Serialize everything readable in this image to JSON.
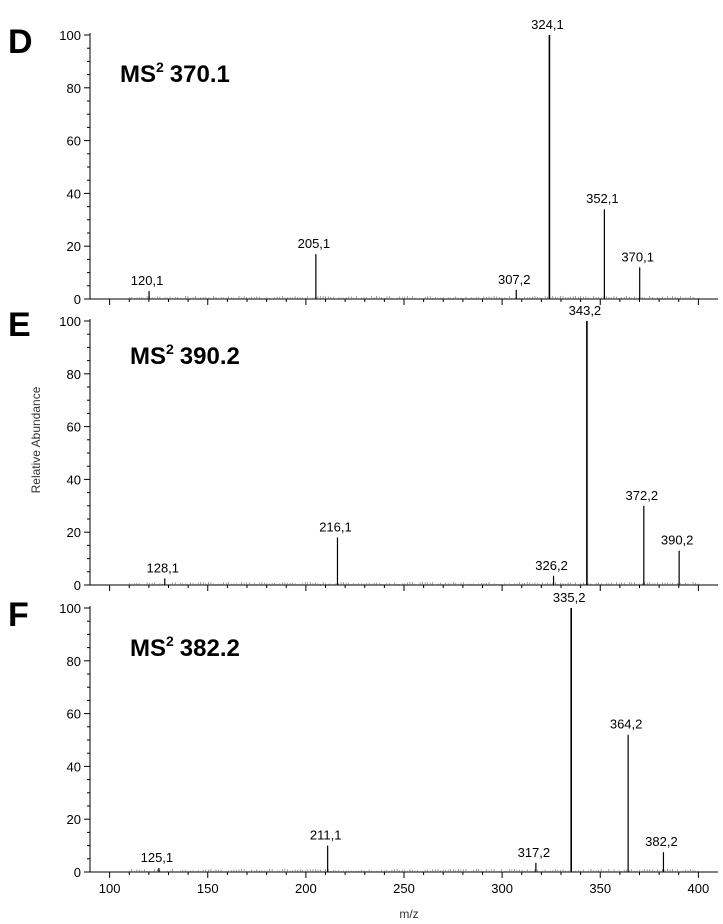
{
  "chart_data": [
    {
      "type": "bar",
      "panel": "D",
      "title_main": "MS",
      "title_sup": "2",
      "title_value": "370.1",
      "xlim": [
        90,
        410
      ],
      "ylim": [
        0,
        100
      ],
      "yticks": [
        "0",
        "20",
        "40",
        "60",
        "80",
        "100"
      ],
      "peaks": [
        {
          "x": 120.1,
          "y": 3,
          "label": "120,1"
        },
        {
          "x": 205.1,
          "y": 17,
          "label": "205,1"
        },
        {
          "x": 307.2,
          "y": 3.5,
          "label": "307,2"
        },
        {
          "x": 324.1,
          "y": 100,
          "label": "324,1"
        },
        {
          "x": 352.1,
          "y": 34,
          "label": "352,1"
        },
        {
          "x": 370.1,
          "y": 12,
          "label": "370,1"
        }
      ]
    },
    {
      "type": "bar",
      "panel": "E",
      "title_main": "MS",
      "title_sup": "2",
      "title_value": "390.2",
      "xlim": [
        90,
        410
      ],
      "ylim": [
        0,
        100
      ],
      "yticks": [
        "0",
        "20",
        "40",
        "60",
        "80",
        "100"
      ],
      "peaks": [
        {
          "x": 128.1,
          "y": 2.5,
          "label": "128,1"
        },
        {
          "x": 216.1,
          "y": 18,
          "label": "216,1"
        },
        {
          "x": 326.2,
          "y": 3.5,
          "label": "326,2"
        },
        {
          "x": 343.2,
          "y": 100,
          "label": "343,2"
        },
        {
          "x": 372.2,
          "y": 30,
          "label": "372,2"
        },
        {
          "x": 390.2,
          "y": 13,
          "label": "390,2"
        }
      ]
    },
    {
      "type": "bar",
      "panel": "F",
      "title_main": "MS",
      "title_sup": "2",
      "title_value": "382.2",
      "xlim": [
        90,
        410
      ],
      "ylim": [
        0,
        100
      ],
      "yticks": [
        "0",
        "20",
        "40",
        "60",
        "80",
        "100"
      ],
      "xticks": [
        "100",
        "150",
        "200",
        "250",
        "300",
        "350",
        "400"
      ],
      "peaks": [
        {
          "x": 125.1,
          "y": 1.5,
          "label": "125,1"
        },
        {
          "x": 211.1,
          "y": 10,
          "label": "211,1"
        },
        {
          "x": 317.2,
          "y": 3.5,
          "label": "317,2"
        },
        {
          "x": 335.2,
          "y": 100,
          "label": "335,2"
        },
        {
          "x": 364.2,
          "y": 52,
          "label": "364,2"
        },
        {
          "x": 382.2,
          "y": 7.5,
          "label": "382,2"
        }
      ]
    }
  ],
  "ylabel": "Relative Abundance",
  "xlabel": "m/z"
}
